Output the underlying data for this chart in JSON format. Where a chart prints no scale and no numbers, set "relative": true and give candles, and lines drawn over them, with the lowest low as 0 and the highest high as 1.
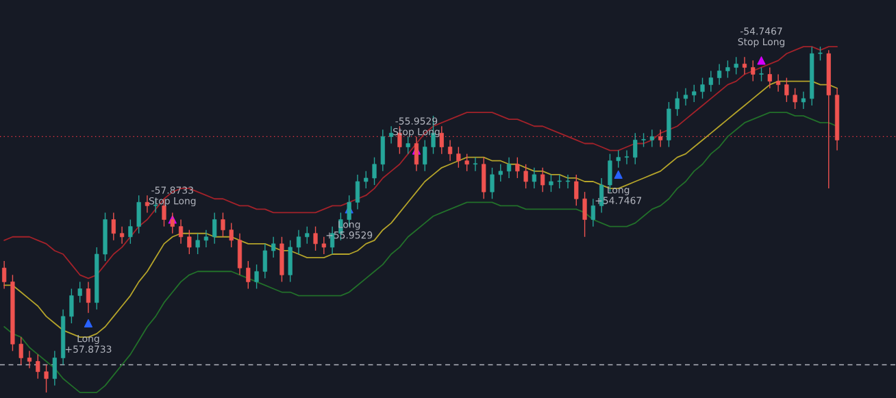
{
  "chart_data": {
    "type": "candlestick",
    "relative": true,
    "categories": [
      null,
      null,
      null,
      null,
      null,
      null,
      null,
      null,
      null,
      null,
      null,
      null,
      null,
      null,
      null,
      null,
      null,
      null,
      null,
      null,
      null,
      null,
      null,
      null,
      null,
      null,
      null,
      null,
      null,
      null,
      null,
      null,
      null,
      null,
      null,
      null,
      null,
      null,
      null,
      null,
      null,
      null,
      null,
      null,
      null,
      null,
      null,
      null,
      null,
      null,
      null,
      null,
      null,
      null,
      null,
      null,
      null,
      null,
      null,
      null,
      null,
      null,
      null,
      null,
      null,
      null,
      null,
      null,
      null,
      null,
      null,
      null,
      null,
      null,
      null,
      null,
      null,
      null,
      null,
      null,
      null,
      null,
      null,
      null,
      null,
      null,
      null,
      null,
      null,
      null,
      null,
      null,
      null,
      null,
      null,
      null,
      null,
      null,
      null,
      null
    ],
    "ohlc": [
      [
        0.36,
        0.38,
        0.3,
        0.32
      ],
      [
        0.32,
        0.34,
        0.12,
        0.14
      ],
      [
        0.14,
        0.16,
        0.08,
        0.1
      ],
      [
        0.1,
        0.12,
        0.07,
        0.09
      ],
      [
        0.09,
        0.11,
        0.04,
        0.06
      ],
      [
        0.06,
        0.08,
        0,
        0.04
      ],
      [
        0.04,
        0.12,
        0.02,
        0.1
      ],
      [
        0.1,
        0.24,
        0.08,
        0.22
      ],
      [
        0.22,
        0.3,
        0.2,
        0.28
      ],
      [
        0.28,
        0.32,
        0.26,
        0.3
      ],
      [
        0.3,
        0.32,
        0.23,
        0.26
      ],
      [
        0.26,
        0.42,
        0.24,
        0.4
      ],
      [
        0.4,
        0.52,
        0.38,
        0.5
      ],
      [
        0.5,
        0.52,
        0.44,
        0.46
      ],
      [
        0.46,
        0.48,
        0.43,
        0.45
      ],
      [
        0.45,
        0.5,
        0.43,
        0.48
      ],
      [
        0.48,
        0.57,
        0.46,
        0.55
      ],
      [
        0.55,
        0.57,
        0.52,
        0.54
      ],
      [
        0.54,
        0.56,
        0.52,
        0.54
      ],
      [
        0.54,
        0.56,
        0.48,
        0.5
      ],
      [
        0.5,
        0.52,
        0.46,
        0.48
      ],
      [
        0.48,
        0.5,
        0.43,
        0.45
      ],
      [
        0.45,
        0.47,
        0.4,
        0.42
      ],
      [
        0.42,
        0.46,
        0.4,
        0.44
      ],
      [
        0.44,
        0.47,
        0.42,
        0.45
      ],
      [
        0.45,
        0.52,
        0.43,
        0.5
      ],
      [
        0.5,
        0.52,
        0.45,
        0.47
      ],
      [
        0.47,
        0.49,
        0.42,
        0.44
      ],
      [
        0.44,
        0.46,
        0.34,
        0.36
      ],
      [
        0.36,
        0.38,
        0.3,
        0.32
      ],
      [
        0.32,
        0.37,
        0.3,
        0.35
      ],
      [
        0.35,
        0.43,
        0.33,
        0.41
      ],
      [
        0.41,
        0.45,
        0.39,
        0.43
      ],
      [
        0.43,
        0.45,
        0.32,
        0.34
      ],
      [
        0.34,
        0.44,
        0.32,
        0.42
      ],
      [
        0.42,
        0.47,
        0.4,
        0.45
      ],
      [
        0.45,
        0.48,
        0.43,
        0.46
      ],
      [
        0.46,
        0.48,
        0.41,
        0.43
      ],
      [
        0.43,
        0.45,
        0.4,
        0.42
      ],
      [
        0.42,
        0.48,
        0.4,
        0.46
      ],
      [
        0.46,
        0.52,
        0.44,
        0.5
      ],
      [
        0.5,
        0.57,
        0.48,
        0.55
      ],
      [
        0.55,
        0.63,
        0.53,
        0.61
      ],
      [
        0.61,
        0.64,
        0.59,
        0.62
      ],
      [
        0.62,
        0.68,
        0.6,
        0.66
      ],
      [
        0.66,
        0.76,
        0.64,
        0.74
      ],
      [
        0.74,
        0.77,
        0.72,
        0.75
      ],
      [
        0.75,
        0.77,
        0.69,
        0.71
      ],
      [
        0.71,
        0.74,
        0.69,
        0.72
      ],
      [
        0.72,
        0.74,
        0.64,
        0.66
      ],
      [
        0.66,
        0.73,
        0.64,
        0.71
      ],
      [
        0.71,
        0.8,
        0.69,
        0.75
      ],
      [
        0.75,
        0.77,
        0.69,
        0.71
      ],
      [
        0.71,
        0.73,
        0.67,
        0.69
      ],
      [
        0.69,
        0.71,
        0.65,
        0.67
      ],
      [
        0.67,
        0.69,
        0.64,
        0.66
      ],
      [
        0.66,
        0.68,
        0.64,
        0.66
      ],
      [
        0.66,
        0.68,
        0.56,
        0.58
      ],
      [
        0.58,
        0.65,
        0.56,
        0.63
      ],
      [
        0.63,
        0.66,
        0.61,
        0.64
      ],
      [
        0.64,
        0.68,
        0.62,
        0.66
      ],
      [
        0.66,
        0.68,
        0.62,
        0.64
      ],
      [
        0.64,
        0.66,
        0.59,
        0.61
      ],
      [
        0.61,
        0.65,
        0.59,
        0.63
      ],
      [
        0.63,
        0.65,
        0.58,
        0.6
      ],
      [
        0.6,
        0.63,
        0.58,
        0.61
      ],
      [
        0.61,
        0.63,
        0.59,
        0.61
      ],
      [
        0.61,
        0.63,
        0.59,
        0.61
      ],
      [
        0.61,
        0.63,
        0.54,
        0.56
      ],
      [
        0.56,
        0.58,
        0.45,
        0.5
      ],
      [
        0.5,
        0.56,
        0.48,
        0.54
      ],
      [
        0.54,
        0.62,
        0.52,
        0.6
      ],
      [
        0.6,
        0.69,
        0.58,
        0.67
      ],
      [
        0.67,
        0.7,
        0.65,
        0.68
      ],
      [
        0.68,
        0.7,
        0.66,
        0.68
      ],
      [
        0.68,
        0.75,
        0.66,
        0.73
      ],
      [
        0.73,
        0.75,
        0.71,
        0.73
      ],
      [
        0.73,
        0.76,
        0.71,
        0.74
      ],
      [
        0.74,
        0.76,
        0.71,
        0.73
      ],
      [
        0.73,
        0.84,
        0.71,
        0.82
      ],
      [
        0.82,
        0.87,
        0.8,
        0.85
      ],
      [
        0.85,
        0.88,
        0.83,
        0.86
      ],
      [
        0.86,
        0.89,
        0.84,
        0.87
      ],
      [
        0.87,
        0.91,
        0.85,
        0.89
      ],
      [
        0.89,
        0.93,
        0.87,
        0.91
      ],
      [
        0.91,
        0.95,
        0.89,
        0.93
      ],
      [
        0.93,
        0.96,
        0.91,
        0.94
      ],
      [
        0.94,
        0.97,
        0.92,
        0.95
      ],
      [
        0.95,
        0.97,
        0.92,
        0.94
      ],
      [
        0.94,
        0.96,
        0.9,
        0.92
      ],
      [
        0.92,
        0.94,
        0.9,
        0.92
      ],
      [
        0.92,
        0.94,
        0.88,
        0.9
      ],
      [
        0.9,
        0.92,
        0.87,
        0.89
      ],
      [
        0.89,
        0.91,
        0.84,
        0.86
      ],
      [
        0.86,
        0.88,
        0.82,
        0.84
      ],
      [
        0.84,
        0.87,
        0.82,
        0.85
      ],
      [
        0.85,
        1,
        0.83,
        0.98
      ],
      [
        0.98,
        1,
        0.96,
        0.98
      ],
      [
        0.98,
        0.99,
        0.59,
        0.86
      ],
      [
        0.86,
        0.88,
        0.7,
        0.73
      ]
    ],
    "colors": [
      "#ef5350",
      "#ef5350",
      "#ef5350",
      "#ef5350",
      "#ef5350",
      "#ef5350",
      "#26a69a",
      "#26a69a",
      "#26a69a",
      "#26a69a",
      "#ef5350",
      "#26a69a",
      "#26a69a",
      "#ef5350",
      "#ef5350",
      "#26a69a",
      "#26a69a",
      "#ef5350",
      "#26a69a",
      "#ef5350",
      "#ef5350",
      "#ef5350",
      "#ef5350",
      "#26a69a",
      "#26a69a",
      "#26a69a",
      "#ef5350",
      "#ef5350",
      "#ef5350",
      "#ef5350",
      "#26a69a",
      "#26a69a",
      "#26a69a",
      "#ef5350",
      "#26a69a",
      "#26a69a",
      "#26a69a",
      "#ef5350",
      "#ef5350",
      "#26a69a",
      "#26a69a",
      "#26a69a",
      "#26a69a",
      "#26a69a",
      "#26a69a",
      "#26a69a",
      "#26a69a",
      "#ef5350",
      "#26a69a",
      "#ef5350",
      "#26a69a",
      "#26a69a",
      "#ef5350",
      "#ef5350",
      "#ef5350",
      "#ef5350",
      "#26a69a",
      "#ef5350",
      "#26a69a",
      "#26a69a",
      "#26a69a",
      "#ef5350",
      "#ef5350",
      "#26a69a",
      "#ef5350",
      "#26a69a",
      "#26a69a",
      "#26a69a",
      "#ef5350",
      "#ef5350",
      "#26a69a",
      "#26a69a",
      "#26a69a",
      "#26a69a",
      "#26a69a",
      "#26a69a",
      "#26a69a",
      "#26a69a",
      "#ef5350",
      "#26a69a",
      "#26a69a",
      "#26a69a",
      "#26a69a",
      "#26a69a",
      "#26a69a",
      "#26a69a",
      "#26a69a",
      "#26a69a",
      "#ef5350",
      "#ef5350",
      "#26a69a",
      "#ef5350",
      "#ef5350",
      "#ef5350",
      "#ef5350",
      "#26a69a",
      "#26a69a",
      "#26a69a",
      "#ef5350",
      "#ef5350"
    ],
    "series": [
      {
        "type": "line",
        "color": "#a3222a",
        "values": [
          0.44,
          0.45,
          0.45,
          0.45,
          0.44,
          0.43,
          0.41,
          0.4,
          0.37,
          0.34,
          0.33,
          0.34,
          0.37,
          0.4,
          0.42,
          0.45,
          0.48,
          0.5,
          0.53,
          0.56,
          0.58,
          0.59,
          0.59,
          0.58,
          0.57,
          0.56,
          0.56,
          0.55,
          0.54,
          0.54,
          0.53,
          0.53,
          0.52,
          0.52,
          0.52,
          0.52,
          0.52,
          0.52,
          0.53,
          0.54,
          0.54,
          0.55,
          0.56,
          0.57,
          0.59,
          0.62,
          0.64,
          0.66,
          0.69,
          0.72,
          0.75,
          0.77,
          0.78,
          0.79,
          0.8,
          0.81,
          0.81,
          0.81,
          0.81,
          0.8,
          0.79,
          0.79,
          0.78,
          0.77,
          0.77,
          0.76,
          0.75,
          0.74,
          0.73,
          0.72,
          0.72,
          0.71,
          0.7,
          0.7,
          0.71,
          0.72,
          0.72,
          0.73,
          0.75,
          0.76,
          0.77,
          0.79,
          0.81,
          0.83,
          0.85,
          0.87,
          0.89,
          0.9,
          0.92,
          0.93,
          0.94,
          0.95,
          0.96,
          0.98,
          0.99,
          1.0,
          1.0,
          0.99,
          1.0,
          1.0
        ]
      },
      {
        "type": "line",
        "color": "#b5a42a",
        "values": [
          0.31,
          0.31,
          0.29,
          0.27,
          0.25,
          0.22,
          0.2,
          0.18,
          0.17,
          0.16,
          0.16,
          0.17,
          0.19,
          0.22,
          0.25,
          0.28,
          0.32,
          0.35,
          0.39,
          0.43,
          0.45,
          0.46,
          0.46,
          0.46,
          0.46,
          0.45,
          0.45,
          0.45,
          0.44,
          0.43,
          0.43,
          0.43,
          0.42,
          0.41,
          0.41,
          0.4,
          0.39,
          0.39,
          0.39,
          0.4,
          0.4,
          0.4,
          0.41,
          0.43,
          0.44,
          0.47,
          0.49,
          0.52,
          0.55,
          0.58,
          0.61,
          0.63,
          0.65,
          0.66,
          0.67,
          0.68,
          0.68,
          0.68,
          0.67,
          0.67,
          0.66,
          0.66,
          0.65,
          0.64,
          0.64,
          0.63,
          0.63,
          0.62,
          0.62,
          0.61,
          0.61,
          0.6,
          0.59,
          0.59,
          0.6,
          0.61,
          0.62,
          0.63,
          0.64,
          0.66,
          0.68,
          0.69,
          0.71,
          0.73,
          0.75,
          0.77,
          0.79,
          0.81,
          0.83,
          0.85,
          0.87,
          0.89,
          0.9,
          0.9,
          0.9,
          0.9,
          0.9,
          0.89,
          0.89,
          0.88
        ]
      },
      {
        "type": "line",
        "color": "#22702a",
        "values": [
          0.19,
          0.17,
          0.16,
          0.13,
          0.11,
          0.09,
          0.07,
          0.04,
          0.02,
          0.0,
          0.0,
          0.0,
          0.02,
          0.05,
          0.08,
          0.11,
          0.15,
          0.19,
          0.22,
          0.26,
          0.29,
          0.32,
          0.34,
          0.35,
          0.35,
          0.35,
          0.35,
          0.35,
          0.34,
          0.33,
          0.32,
          0.31,
          0.3,
          0.29,
          0.29,
          0.28,
          0.28,
          0.28,
          0.28,
          0.28,
          0.28,
          0.29,
          0.31,
          0.33,
          0.35,
          0.37,
          0.4,
          0.42,
          0.45,
          0.47,
          0.49,
          0.51,
          0.52,
          0.53,
          0.54,
          0.55,
          0.55,
          0.55,
          0.55,
          0.54,
          0.54,
          0.54,
          0.53,
          0.53,
          0.53,
          0.53,
          0.53,
          0.53,
          0.53,
          0.52,
          0.5,
          0.49,
          0.48,
          0.48,
          0.48,
          0.49,
          0.51,
          0.53,
          0.54,
          0.56,
          0.59,
          0.61,
          0.64,
          0.66,
          0.69,
          0.71,
          0.74,
          0.76,
          0.78,
          0.79,
          0.8,
          0.81,
          0.81,
          0.81,
          0.8,
          0.8,
          0.79,
          0.78,
          0.78,
          0.77
        ]
      },
      {
        "type": "scatter",
        "color": "#2962ff",
        "marker": "triangle",
        "values": [
          null,
          null,
          null,
          null,
          null,
          null,
          null,
          null,
          null,
          null,
          0.2,
          null,
          null,
          null,
          null,
          null,
          null,
          null,
          null,
          null,
          null,
          null,
          null,
          null,
          null,
          null,
          null,
          null,
          null,
          null,
          null,
          null,
          null,
          null,
          null,
          null,
          null,
          null,
          null,
          null,
          null,
          0.53,
          null,
          null,
          null,
          null,
          null,
          null,
          null,
          null,
          null,
          null,
          null,
          null,
          null,
          null,
          null,
          null,
          null,
          null,
          null,
          null,
          null,
          null,
          null,
          null,
          null,
          null,
          null,
          null,
          null,
          null,
          null,
          0.63,
          null,
          null,
          null,
          null,
          null,
          null,
          null,
          null,
          null,
          null,
          null,
          null,
          null,
          null,
          null,
          null,
          null,
          null,
          null,
          null,
          null,
          null,
          null,
          null,
          null,
          null
        ]
      },
      {
        "type": "scatter",
        "color": "#d500f9",
        "marker": "triangle",
        "values": [
          null,
          null,
          null,
          null,
          null,
          null,
          null,
          null,
          null,
          null,
          null,
          null,
          null,
          null,
          null,
          null,
          null,
          null,
          null,
          null,
          0.5,
          null,
          null,
          null,
          null,
          null,
          null,
          null,
          null,
          null,
          null,
          null,
          null,
          null,
          null,
          null,
          null,
          null,
          null,
          null,
          null,
          null,
          null,
          null,
          null,
          null,
          null,
          null,
          null,
          0.7,
          null,
          null,
          null,
          null,
          null,
          null,
          null,
          null,
          null,
          null,
          null,
          null,
          null,
          null,
          null,
          null,
          null,
          null,
          null,
          null,
          null,
          null,
          null,
          null,
          null,
          null,
          null,
          null,
          null,
          null,
          null,
          null,
          null,
          null,
          null,
          null,
          null,
          null,
          null,
          null,
          0.96,
          null,
          null,
          null,
          null,
          null,
          null,
          null,
          null,
          null
        ]
      }
    ],
    "annotations": [
      "Long\n+57.8733",
      "Long\n+55.9529",
      "Long\n+54.7467",
      "-57.8733\nStop Long",
      "-55.9529\nStop Long",
      "-54.7467\nStop Long"
    ],
    "ref_lines": [
      {
        "axis": "y",
        "value": 0.74,
        "color": "#f23645",
        "line_style": "dotted"
      },
      {
        "axis": "y",
        "value": 0.08,
        "color": "#b2b5be",
        "line_style": "dashed"
      }
    ]
  }
}
